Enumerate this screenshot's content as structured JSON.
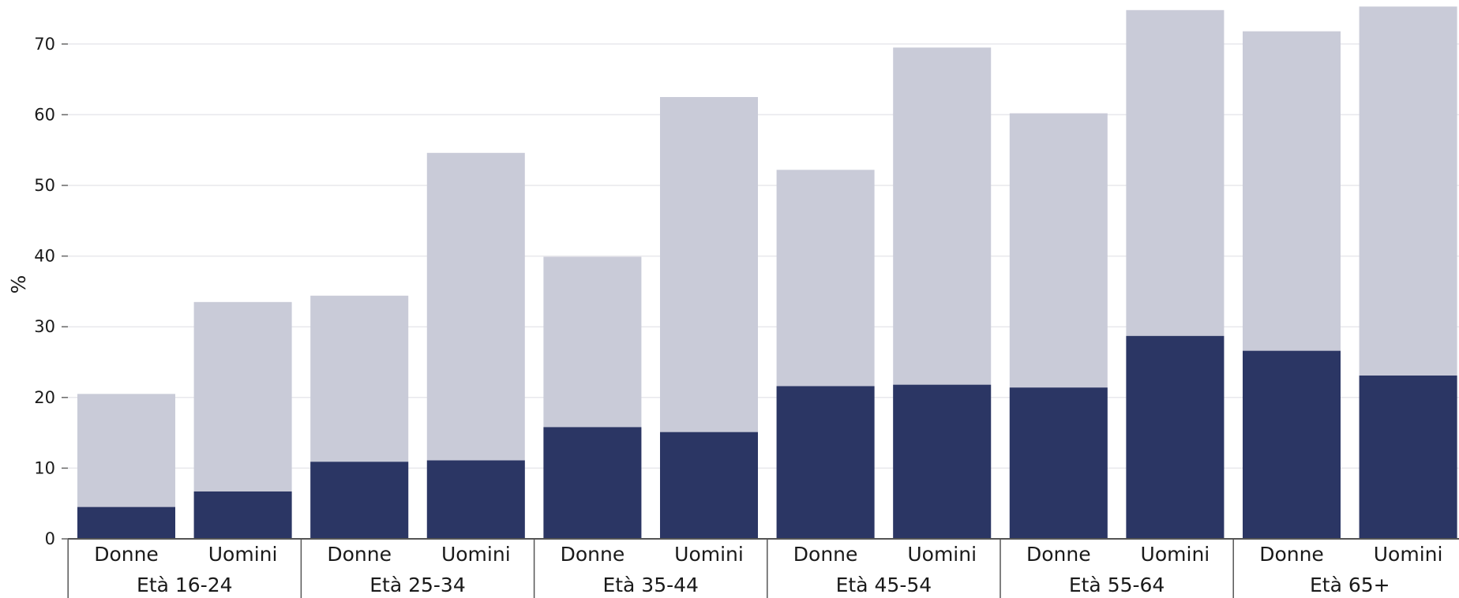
{
  "chart_data": {
    "type": "bar",
    "stacked": false,
    "overlay": true,
    "title": "",
    "xlabel": "",
    "ylabel": "%",
    "ylim": [
      0,
      75
    ],
    "yticks": [
      0,
      10,
      20,
      30,
      40,
      50,
      60,
      70
    ],
    "grid": true,
    "legend": "none",
    "groups": [
      {
        "label": "Età 16-24",
        "categories": [
          "Donne",
          "Uomini"
        ]
      },
      {
        "label": "Età 25-34",
        "categories": [
          "Donne",
          "Uomini"
        ]
      },
      {
        "label": "Età 35-44",
        "categories": [
          "Donne",
          "Uomini"
        ]
      },
      {
        "label": "Età 45-54",
        "categories": [
          "Donne",
          "Uomini"
        ]
      },
      {
        "label": "Età 55-64",
        "categories": [
          "Donne",
          "Uomini"
        ]
      },
      {
        "label": "Età 65+",
        "categories": [
          "Donne",
          "Uomini"
        ]
      }
    ],
    "series": [
      {
        "color": "#c9cbd8",
        "values": [
          20.5,
          33.5,
          34.4,
          54.6,
          39.9,
          62.5,
          52.2,
          69.5,
          60.2,
          74.8,
          71.8,
          75.3
        ]
      },
      {
        "color": "#2b3664",
        "values": [
          4.5,
          6.7,
          10.9,
          11.1,
          15.8,
          15.1,
          21.6,
          21.8,
          21.4,
          28.7,
          26.6,
          23.1
        ]
      }
    ]
  }
}
